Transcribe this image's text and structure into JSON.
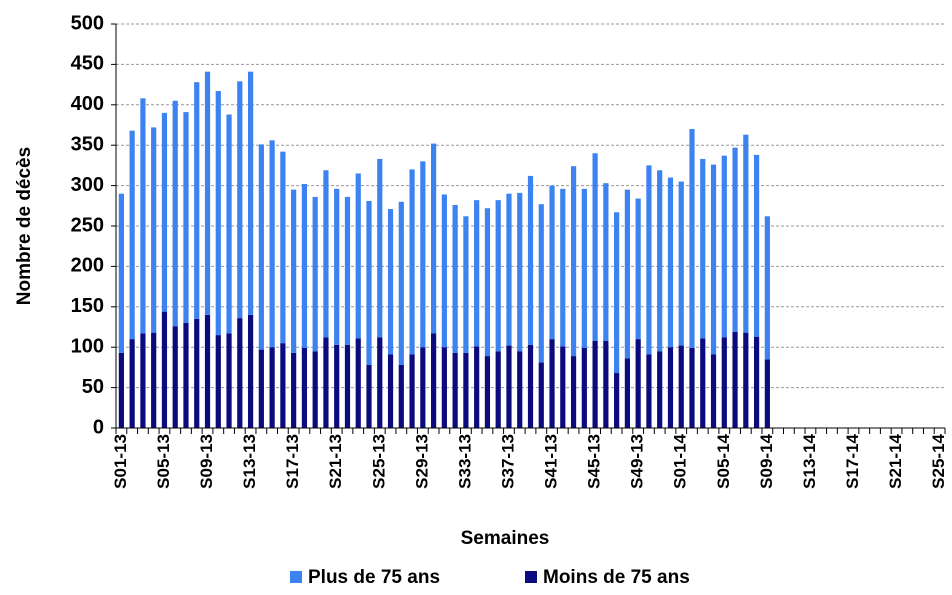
{
  "chart_data": {
    "type": "stacked_bar",
    "y_label": "Nombre de décès",
    "x_label": "Semaines",
    "categories": [
      "S01-13",
      null,
      null,
      null,
      "S05-13",
      null,
      null,
      null,
      "S09-13",
      null,
      null,
      null,
      "S13-13",
      null,
      null,
      null,
      "S17-13",
      null,
      null,
      null,
      "S21-13",
      null,
      null,
      null,
      "S25-13",
      null,
      null,
      null,
      "S29-13",
      null,
      null,
      null,
      "S33-13",
      null,
      null,
      null,
      "S37-13",
      null,
      null,
      null,
      "S41-13",
      null,
      null,
      null,
      "S45-13",
      null,
      null,
      null,
      "S49-13",
      null,
      null,
      null,
      "S01-14",
      null,
      null,
      null,
      "S05-14",
      null,
      null,
      null,
      "S09-14",
      null,
      null,
      null,
      "S13-14",
      null,
      null,
      null,
      "S17-14",
      null,
      null,
      null,
      "S21-14",
      null,
      null,
      null,
      "S25-14"
    ],
    "series": [
      {
        "name": "Moins de 75 ans",
        "color": "#0b0b7e",
        "values": [
          93,
          110,
          117,
          118,
          144,
          126,
          130,
          135,
          140,
          115,
          117,
          136,
          140,
          97,
          100,
          105,
          93,
          99,
          95,
          112,
          103,
          103,
          111,
          78,
          112,
          91,
          78,
          91,
          100,
          117,
          100,
          93,
          93,
          101,
          89,
          95,
          102,
          95,
          103,
          81,
          110,
          101,
          89,
          99,
          108,
          108,
          68,
          86,
          110,
          91,
          95,
          100,
          102,
          99,
          111,
          91,
          112,
          119,
          118,
          113,
          85,
          null,
          null,
          null,
          null,
          null,
          null,
          null,
          null,
          null,
          null,
          null,
          null,
          null,
          null,
          null,
          null
        ]
      },
      {
        "name": "Plus de 75 ans",
        "color": "#3c82f0",
        "values": [
          197,
          258,
          291,
          254,
          246,
          279,
          261,
          293,
          301,
          302,
          271,
          293,
          301,
          254,
          256,
          237,
          202,
          203,
          191,
          207,
          193,
          183,
          204,
          203,
          221,
          180,
          202,
          229,
          230,
          235,
          189,
          183,
          169,
          181,
          183,
          187,
          188,
          196,
          209,
          196,
          190,
          195,
          235,
          197,
          232,
          195,
          199,
          209,
          174,
          234,
          224,
          210,
          203,
          271,
          222,
          235,
          225,
          228,
          245,
          225,
          177,
          null,
          null,
          null,
          null,
          null,
          null,
          null,
          null,
          null,
          null,
          null,
          null,
          null,
          null,
          null,
          null
        ]
      }
    ],
    "ylim": [
      0,
      500
    ],
    "yticks": [
      0,
      50,
      100,
      150,
      200,
      250,
      300,
      350,
      400,
      450,
      500
    ],
    "grid": true,
    "legend": "bottom"
  }
}
